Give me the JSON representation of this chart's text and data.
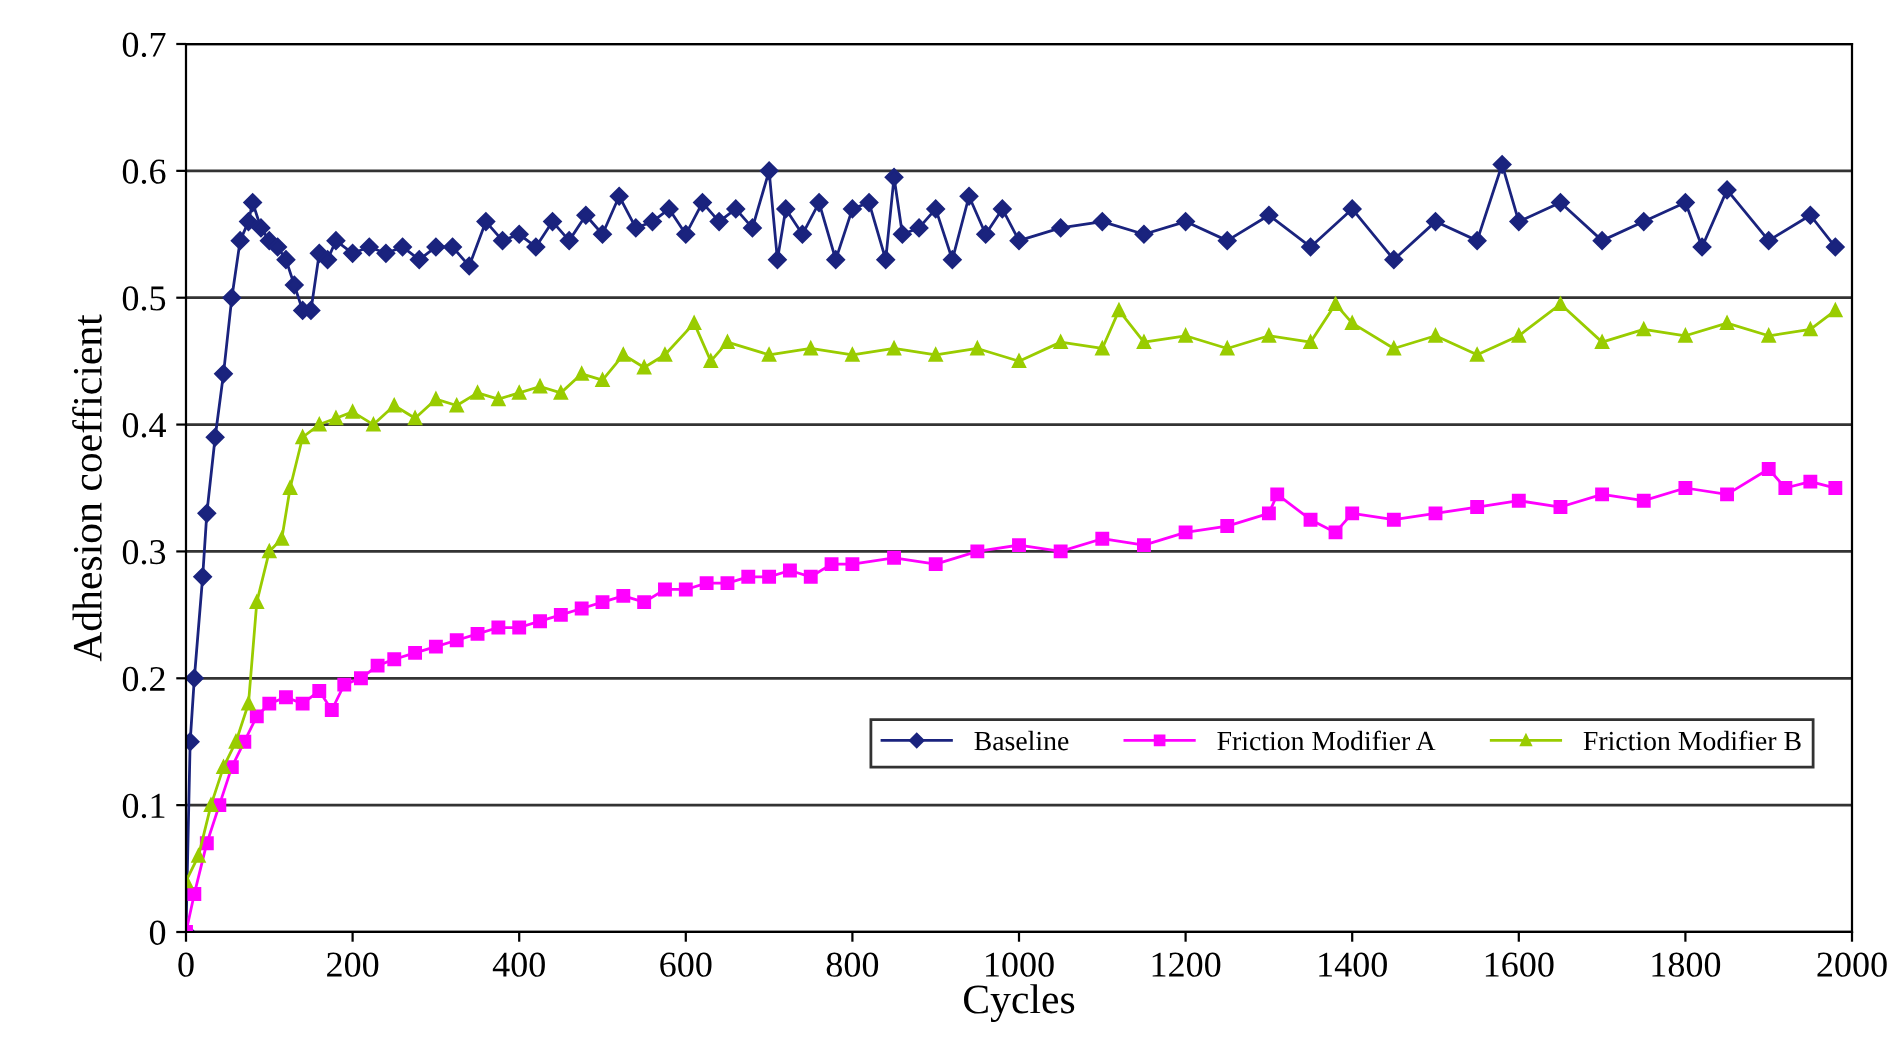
{
  "chart_data": {
    "type": "line",
    "xlabel": "Cycles",
    "ylabel": "Adhesion coefficient",
    "xlim": [
      0,
      2000
    ],
    "xticks": [
      0,
      200,
      400,
      600,
      800,
      1000,
      1200,
      1400,
      1600,
      1800,
      2000
    ],
    "ylim": [
      0,
      0.7
    ],
    "yticks": [
      0,
      0.1,
      0.2,
      0.3,
      0.4,
      0.5,
      0.6,
      0.7
    ],
    "grid": "y",
    "legend": "bottom right",
    "line_style": "solid",
    "series": [
      {
        "name": "Baseline",
        "color": "#1a237e",
        "marker": "diamond",
        "x": [
          0,
          5,
          10,
          20,
          25,
          35,
          45,
          55,
          65,
          75,
          80,
          90,
          100,
          110,
          120,
          130,
          140,
          150,
          160,
          170,
          180,
          200,
          220,
          240,
          260,
          280,
          300,
          320,
          340,
          360,
          380,
          400,
          420,
          440,
          460,
          480,
          500,
          520,
          540,
          560,
          580,
          600,
          620,
          640,
          660,
          680,
          700,
          710,
          720,
          740,
          760,
          780,
          800,
          820,
          840,
          850,
          860,
          880,
          900,
          920,
          940,
          960,
          980,
          1000,
          1050,
          1100,
          1150,
          1200,
          1250,
          1300,
          1350,
          1400,
          1450,
          1500,
          1550,
          1580,
          1600,
          1650,
          1700,
          1750,
          1800,
          1820,
          1850,
          1900,
          1950,
          1980
        ],
        "values": [
          0,
          0.15,
          0.2,
          0.28,
          0.33,
          0.39,
          0.44,
          0.5,
          0.545,
          0.56,
          0.575,
          0.555,
          0.545,
          0.54,
          0.53,
          0.51,
          0.49,
          0.49,
          0.535,
          0.53,
          0.545,
          0.535,
          0.54,
          0.535,
          0.54,
          0.53,
          0.54,
          0.54,
          0.525,
          0.56,
          0.545,
          0.55,
          0.54,
          0.56,
          0.545,
          0.565,
          0.55,
          0.58,
          0.555,
          0.56,
          0.57,
          0.55,
          0.575,
          0.56,
          0.57,
          0.555,
          0.6,
          0.53,
          0.57,
          0.55,
          0.575,
          0.53,
          0.57,
          0.575,
          0.53,
          0.595,
          0.55,
          0.555,
          0.57,
          0.53,
          0.58,
          0.55,
          0.57,
          0.545,
          0.555,
          0.56,
          0.55,
          0.56,
          0.545,
          0.565,
          0.54,
          0.57,
          0.53,
          0.56,
          0.545,
          0.605,
          0.56,
          0.575,
          0.545,
          0.56,
          0.575,
          0.54,
          0.585,
          0.545,
          0.565,
          0.54
        ]
      },
      {
        "name": "Friction Modifier A",
        "color": "#ff00ff",
        "marker": "square",
        "x": [
          0,
          10,
          25,
          40,
          55,
          70,
          85,
          100,
          120,
          140,
          160,
          175,
          190,
          210,
          230,
          250,
          275,
          300,
          325,
          350,
          375,
          400,
          425,
          450,
          475,
          500,
          525,
          550,
          575,
          600,
          625,
          650,
          675,
          700,
          725,
          750,
          775,
          800,
          850,
          900,
          950,
          1000,
          1050,
          1100,
          1150,
          1200,
          1250,
          1300,
          1310,
          1350,
          1380,
          1400,
          1450,
          1500,
          1550,
          1600,
          1650,
          1700,
          1750,
          1800,
          1850,
          1900,
          1920,
          1950,
          1980
        ],
        "values": [
          0,
          0.03,
          0.07,
          0.1,
          0.13,
          0.15,
          0.17,
          0.18,
          0.185,
          0.18,
          0.19,
          0.175,
          0.195,
          0.2,
          0.21,
          0.215,
          0.22,
          0.225,
          0.23,
          0.235,
          0.24,
          0.24,
          0.245,
          0.25,
          0.255,
          0.26,
          0.265,
          0.26,
          0.27,
          0.27,
          0.275,
          0.275,
          0.28,
          0.28,
          0.285,
          0.28,
          0.29,
          0.29,
          0.295,
          0.29,
          0.3,
          0.305,
          0.3,
          0.31,
          0.305,
          0.315,
          0.32,
          0.33,
          0.345,
          0.325,
          0.315,
          0.33,
          0.325,
          0.33,
          0.335,
          0.34,
          0.335,
          0.345,
          0.34,
          0.35,
          0.345,
          0.365,
          0.35,
          0.355,
          0.35
        ]
      },
      {
        "name": "Friction Modifier B",
        "color": "#99cc00",
        "marker": "triangle",
        "x": [
          0,
          15,
          30,
          45,
          60,
          75,
          85,
          100,
          115,
          125,
          140,
          160,
          180,
          200,
          225,
          250,
          275,
          300,
          325,
          350,
          375,
          400,
          425,
          450,
          475,
          500,
          525,
          550,
          575,
          610,
          630,
          650,
          700,
          750,
          800,
          850,
          900,
          950,
          1000,
          1050,
          1100,
          1120,
          1150,
          1200,
          1250,
          1300,
          1350,
          1380,
          1400,
          1450,
          1500,
          1550,
          1600,
          1650,
          1700,
          1750,
          1800,
          1850,
          1900,
          1950,
          1980
        ],
        "values": [
          0.04,
          0.06,
          0.1,
          0.13,
          0.15,
          0.18,
          0.26,
          0.3,
          0.31,
          0.35,
          0.39,
          0.4,
          0.405,
          0.41,
          0.4,
          0.415,
          0.405,
          0.42,
          0.415,
          0.425,
          0.42,
          0.425,
          0.43,
          0.425,
          0.44,
          0.435,
          0.455,
          0.445,
          0.455,
          0.48,
          0.45,
          0.465,
          0.455,
          0.46,
          0.455,
          0.46,
          0.455,
          0.46,
          0.45,
          0.465,
          0.46,
          0.49,
          0.465,
          0.47,
          0.46,
          0.47,
          0.465,
          0.495,
          0.48,
          0.46,
          0.47,
          0.455,
          0.47,
          0.495,
          0.465,
          0.475,
          0.47,
          0.48,
          0.47,
          0.475,
          0.49
        ]
      }
    ]
  }
}
